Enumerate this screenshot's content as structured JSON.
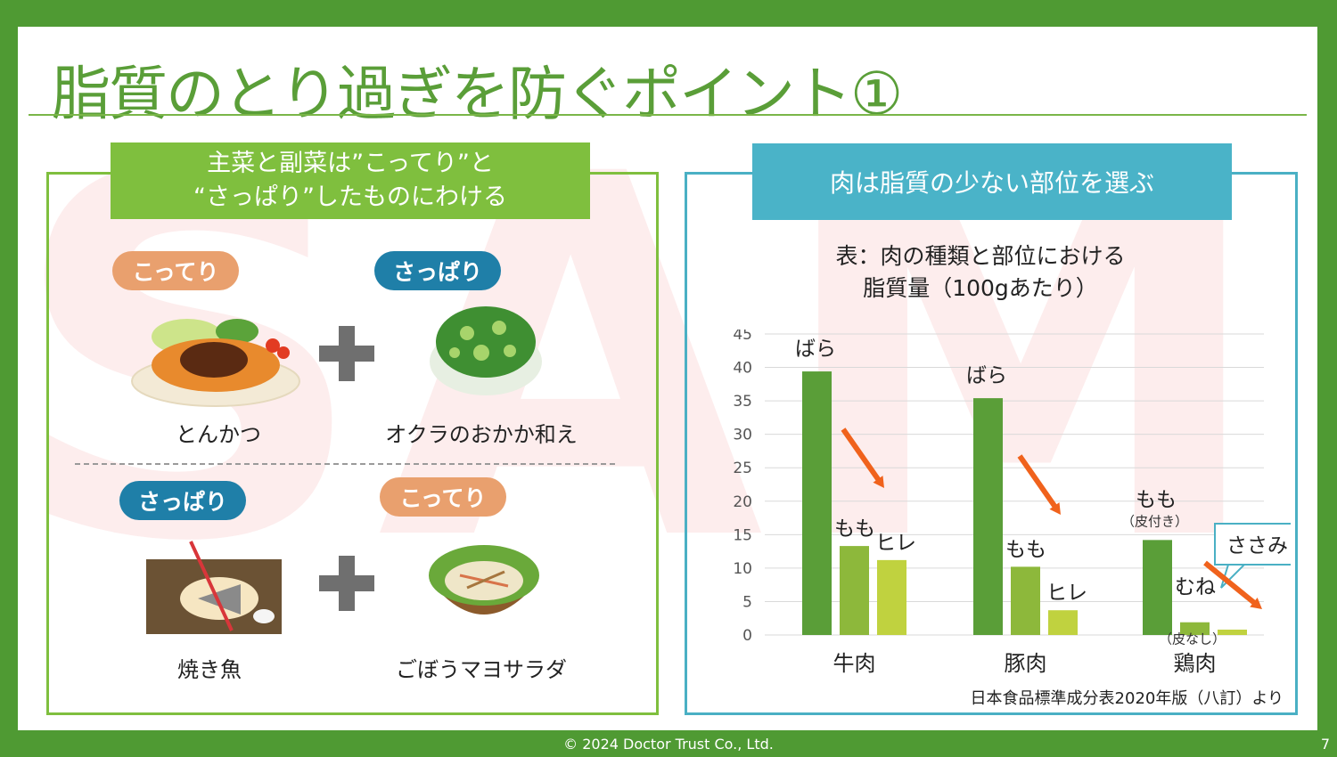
{
  "watermark": "SAMPLE",
  "title": "脂質のとり過ぎを防ぐポイント①",
  "left_panel": {
    "banner_line1": "主菜と副菜は”こってり”と",
    "banner_line2": "“さっぱり”したものにわける",
    "rich_label": "こってり",
    "light_label": "さっぱり",
    "pair1": {
      "main": "とんかつ",
      "side": "オクラのおかか和え"
    },
    "pair2": {
      "main": "焼き魚",
      "side": "ごぼうマヨサラダ"
    }
  },
  "right_panel": {
    "banner": "肉は脂質の少ない部位を選ぶ",
    "chart_title_line1": "表：肉の種類と部位における",
    "chart_title_line2": "脂質量（100gあたり）",
    "source": "日本食品標準成分表2020年版（八訂）より"
  },
  "chart_data": {
    "type": "bar",
    "title": "表：肉の種類と部位における 脂質量（100gあたり）",
    "ylim": [
      0,
      45
    ],
    "yticks": [
      "0",
      "5",
      "10",
      "15",
      "20",
      "25",
      "30",
      "35",
      "40",
      "45"
    ],
    "categories": [
      "牛肉",
      "豚肉",
      "鶏肉"
    ],
    "groups": [
      {
        "category": "牛肉",
        "bars": [
          {
            "label": "ばら",
            "note": "",
            "value": 39.4,
            "color": "#5a9e38"
          },
          {
            "label": "もも",
            "note": "",
            "value": 13.3,
            "color": "#8db83b"
          },
          {
            "label": "ヒレ",
            "note": "",
            "value": 11.2,
            "color": "#c0d23f"
          }
        ]
      },
      {
        "category": "豚肉",
        "bars": [
          {
            "label": "ばら",
            "note": "",
            "value": 35.4,
            "color": "#5a9e38"
          },
          {
            "label": "もも",
            "note": "",
            "value": 10.2,
            "color": "#8db83b"
          },
          {
            "label": "ヒレ",
            "note": "",
            "value": 3.7,
            "color": "#c0d23f"
          }
        ]
      },
      {
        "category": "鶏肉",
        "bars": [
          {
            "label": "もも",
            "note": "（皮付き）",
            "value": 14.2,
            "color": "#5a9e38"
          },
          {
            "label": "むね",
            "note": "（皮なし）",
            "value": 1.9,
            "color": "#8db83b"
          },
          {
            "label": "ささみ",
            "note": "",
            "value": 0.8,
            "color": "#c0d23f"
          }
        ]
      }
    ],
    "arrow_color": "#f0621c",
    "grid": true
  },
  "footer": "© 2024 Doctor Trust Co., Ltd.",
  "page_number": "7"
}
